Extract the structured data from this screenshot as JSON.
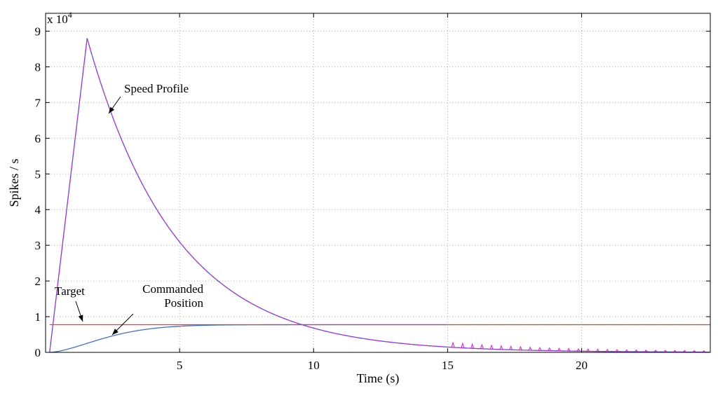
{
  "chart_data": {
    "type": "line",
    "xlabel": "Time (s)",
    "ylabel": "Spikes / s",
    "y_multiplier_base": "x 10",
    "y_multiplier_exp": "4",
    "xlim": [
      0,
      24.8
    ],
    "ylim": [
      0,
      9.5
    ],
    "x_ticks": [
      5,
      10,
      15,
      20
    ],
    "y_ticks": [
      0,
      1,
      2,
      3,
      4,
      5,
      6,
      7,
      8,
      9
    ],
    "grid": true,
    "series": [
      {
        "key": "speed",
        "color": "#d020d0",
        "dashcolor": "#3060ff",
        "peak": {
          "x": 1.55,
          "y": 8.8
        },
        "decay_tau": 3.3
      },
      {
        "key": "commanded",
        "color": "#4070d0",
        "tail_color": "#40a040",
        "final": 0.775,
        "tau": 2.5
      },
      {
        "key": "target",
        "color": "#ff3030",
        "value": 0.775
      }
    ],
    "annotations": [
      {
        "key": "speed_profile",
        "lines": [
          "Speed Profile"
        ]
      },
      {
        "key": "target",
        "lines": [
          "Target"
        ]
      },
      {
        "key": "commanded_position",
        "lines": [
          "Commanded",
          "Position"
        ]
      }
    ]
  }
}
